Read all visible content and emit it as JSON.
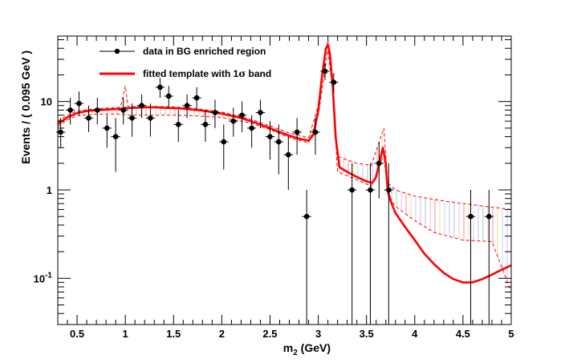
{
  "chart_data": {
    "type": "scatter",
    "xlabel": {
      "main": "m",
      "sub": "2",
      "unit": " (GeV)"
    },
    "ylabel": "Events / ( 0.095 GeV )",
    "log_y": true,
    "xlim": [
      0.3,
      5.0
    ],
    "ylim": [
      0.03,
      55
    ],
    "x_ticks": [
      {
        "v": 0.5,
        "label": "0.5"
      },
      {
        "v": 1.0,
        "label": "1"
      },
      {
        "v": 1.5,
        "label": "1.5"
      },
      {
        "v": 2.0,
        "label": "2"
      },
      {
        "v": 2.5,
        "label": "2.5"
      },
      {
        "v": 3.0,
        "label": "3"
      },
      {
        "v": 3.5,
        "label": "3.5"
      },
      {
        "v": 4.0,
        "label": "4"
      },
      {
        "v": 4.5,
        "label": "4.5"
      },
      {
        "v": 5.0,
        "label": "5"
      }
    ],
    "y_ticks": [
      {
        "v": 0.1,
        "base": "10",
        "exp": "-1"
      },
      {
        "v": 1,
        "base": "1",
        "exp": ""
      },
      {
        "v": 10,
        "base": "10",
        "exp": ""
      }
    ],
    "legend": {
      "position": "top-left",
      "entries": [
        {
          "label": "data in BG enriched region",
          "style": "marker",
          "color": "#000000"
        },
        {
          "label": "fitted template with 1",
          "symbol": "σ",
          "suffix": " band",
          "style": "line",
          "color": "#ff0000"
        }
      ]
    },
    "series": [
      {
        "name": "data in BG enriched region",
        "kind": "points",
        "color": "#000000",
        "x_err": 0.0475,
        "points": [
          {
            "x": 0.33,
            "y": 4.5,
            "lo": 3.0,
            "hi": 6.5
          },
          {
            "x": 0.43,
            "y": 8.0,
            "lo": 5.5,
            "hi": 11.0
          },
          {
            "x": 0.52,
            "y": 9.5,
            "lo": 7.0,
            "hi": 13.0
          },
          {
            "x": 0.62,
            "y": 6.5,
            "lo": 4.5,
            "hi": 9.0
          },
          {
            "x": 0.71,
            "y": 8.0,
            "lo": 5.5,
            "hi": 11.0
          },
          {
            "x": 0.81,
            "y": 5.0,
            "lo": 3.0,
            "hi": 7.0
          },
          {
            "x": 0.9,
            "y": 4.0,
            "lo": 1.6,
            "hi": 6.5
          },
          {
            "x": 0.98,
            "y": 8.0,
            "lo": 5.5,
            "hi": 11.0
          },
          {
            "x": 1.07,
            "y": 6.5,
            "lo": 4.0,
            "hi": 9.5
          },
          {
            "x": 1.17,
            "y": 9.0,
            "lo": 6.5,
            "hi": 12.0
          },
          {
            "x": 1.26,
            "y": 6.5,
            "lo": 4.0,
            "hi": 9.5
          },
          {
            "x": 1.36,
            "y": 14.5,
            "lo": 11.0,
            "hi": 18.5
          },
          {
            "x": 1.45,
            "y": 11.5,
            "lo": 8.5,
            "hi": 15.0
          },
          {
            "x": 1.55,
            "y": 5.5,
            "lo": 3.5,
            "hi": 8.0
          },
          {
            "x": 1.64,
            "y": 9.0,
            "lo": 6.5,
            "hi": 12.0
          },
          {
            "x": 1.74,
            "y": 11.0,
            "lo": 8.0,
            "hi": 14.5
          },
          {
            "x": 1.83,
            "y": 5.5,
            "lo": 3.5,
            "hi": 8.0
          },
          {
            "x": 1.93,
            "y": 7.5,
            "lo": 5.0,
            "hi": 10.5
          },
          {
            "x": 2.02,
            "y": 3.5,
            "lo": 1.7,
            "hi": 5.5
          },
          {
            "x": 2.12,
            "y": 6.0,
            "lo": 4.0,
            "hi": 8.5
          },
          {
            "x": 2.21,
            "y": 7.0,
            "lo": 4.5,
            "hi": 10.0
          },
          {
            "x": 2.31,
            "y": 5.0,
            "lo": 3.0,
            "hi": 7.0
          },
          {
            "x": 2.4,
            "y": 7.5,
            "lo": 5.0,
            "hi": 10.5
          },
          {
            "x": 2.5,
            "y": 4.0,
            "lo": 2.2,
            "hi": 6.0
          },
          {
            "x": 2.59,
            "y": 3.5,
            "lo": 1.5,
            "hi": 5.5
          },
          {
            "x": 2.69,
            "y": 2.5,
            "lo": 1.0,
            "hi": 4.0
          },
          {
            "x": 2.78,
            "y": 4.5,
            "lo": 2.5,
            "hi": 6.5
          },
          {
            "x": 2.88,
            "y": 0.5,
            "lo": 0.03,
            "hi": 1.0
          },
          {
            "x": 2.97,
            "y": 4.5,
            "lo": 2.5,
            "hi": 6.5
          },
          {
            "x": 3.07,
            "y": 22.0,
            "lo": 17.5,
            "hi": 27.0
          },
          {
            "x": 3.16,
            "y": 16.5,
            "lo": 12.5,
            "hi": 21.0
          },
          {
            "x": 3.35,
            "y": 1.0,
            "lo": 0.03,
            "hi": 2.0
          },
          {
            "x": 3.54,
            "y": 1.0,
            "lo": 0.03,
            "hi": 2.0
          },
          {
            "x": 3.63,
            "y": 2.0,
            "lo": 0.8,
            "hi": 3.5
          },
          {
            "x": 3.73,
            "y": 1.0,
            "lo": 0.03,
            "hi": 2.0
          },
          {
            "x": 4.58,
            "y": 0.5,
            "lo": 0.03,
            "hi": 1.0
          },
          {
            "x": 4.77,
            "y": 0.5,
            "lo": 0.03,
            "hi": 1.0
          }
        ]
      },
      {
        "name": "fitted template with 1σ band",
        "kind": "curve",
        "color": "#ff0000",
        "points": [
          [
            0.3,
            5.6
          ],
          [
            0.4,
            6.6
          ],
          [
            0.5,
            7.4
          ],
          [
            0.6,
            7.8
          ],
          [
            0.7,
            8.0
          ],
          [
            0.8,
            8.1
          ],
          [
            0.9,
            8.2
          ],
          [
            0.98,
            8.3
          ],
          [
            1.0,
            8.5
          ],
          [
            1.02,
            8.4
          ],
          [
            1.1,
            8.5
          ],
          [
            1.2,
            8.6
          ],
          [
            1.3,
            8.6
          ],
          [
            1.4,
            8.5
          ],
          [
            1.5,
            8.4
          ],
          [
            1.6,
            8.3
          ],
          [
            1.7,
            8.1
          ],
          [
            1.8,
            7.9
          ],
          [
            1.9,
            7.6
          ],
          [
            2.0,
            7.3
          ],
          [
            2.1,
            6.9
          ],
          [
            2.2,
            6.5
          ],
          [
            2.3,
            6.0
          ],
          [
            2.4,
            5.5
          ],
          [
            2.5,
            5.0
          ],
          [
            2.6,
            4.5
          ],
          [
            2.7,
            4.1
          ],
          [
            2.8,
            3.8
          ],
          [
            2.9,
            3.6
          ],
          [
            2.95,
            4.2
          ],
          [
            3.0,
            8.0
          ],
          [
            3.04,
            20.0
          ],
          [
            3.08,
            40.0
          ],
          [
            3.1,
            44.0
          ],
          [
            3.12,
            35.0
          ],
          [
            3.15,
            15.0
          ],
          [
            3.18,
            4.0
          ],
          [
            3.22,
            1.8
          ],
          [
            3.3,
            1.6
          ],
          [
            3.4,
            1.4
          ],
          [
            3.5,
            1.25
          ],
          [
            3.56,
            1.2
          ],
          [
            3.6,
            1.4
          ],
          [
            3.64,
            2.2
          ],
          [
            3.67,
            3.0
          ],
          [
            3.7,
            2.0
          ],
          [
            3.72,
            1.0
          ],
          [
            3.75,
            0.75
          ],
          [
            3.8,
            0.55
          ],
          [
            3.9,
            0.38
          ],
          [
            4.0,
            0.27
          ],
          [
            4.1,
            0.19
          ],
          [
            4.2,
            0.145
          ],
          [
            4.3,
            0.115
          ],
          [
            4.4,
            0.098
          ],
          [
            4.5,
            0.09
          ],
          [
            4.6,
            0.09
          ],
          [
            4.7,
            0.098
          ],
          [
            4.8,
            0.11
          ],
          [
            4.9,
            0.125
          ],
          [
            5.0,
            0.14
          ]
        ]
      },
      {
        "name": "1σ band upper",
        "kind": "band_edge",
        "color": "#ff0000",
        "points": [
          [
            0.3,
            6.0
          ],
          [
            0.4,
            7.0
          ],
          [
            0.5,
            7.8
          ],
          [
            0.7,
            8.3
          ],
          [
            0.95,
            8.6
          ],
          [
            1.0,
            15.0
          ],
          [
            1.03,
            8.7
          ],
          [
            1.3,
            8.8
          ],
          [
            1.5,
            8.7
          ],
          [
            1.7,
            8.4
          ],
          [
            2.0,
            7.6
          ],
          [
            2.3,
            6.3
          ],
          [
            2.5,
            5.3
          ],
          [
            2.7,
            4.4
          ],
          [
            2.9,
            3.9
          ],
          [
            3.0,
            9.0
          ],
          [
            3.1,
            50.0
          ],
          [
            3.15,
            17.0
          ],
          [
            3.2,
            2.4
          ],
          [
            3.4,
            2.0
          ],
          [
            3.55,
            1.9
          ],
          [
            3.68,
            5.0
          ],
          [
            3.72,
            1.2
          ],
          [
            3.8,
            1.0
          ],
          [
            4.0,
            0.85
          ],
          [
            4.3,
            0.75
          ],
          [
            4.6,
            0.68
          ],
          [
            5.0,
            0.6
          ]
        ]
      },
      {
        "name": "1σ band lower",
        "kind": "band_edge",
        "color": "#ff0000",
        "points": [
          [
            0.3,
            5.2
          ],
          [
            0.4,
            6.2
          ],
          [
            0.5,
            6.9
          ],
          [
            0.7,
            7.2
          ],
          [
            0.95,
            7.2
          ],
          [
            1.05,
            7.0
          ],
          [
            1.3,
            7.0
          ],
          [
            1.5,
            7.0
          ],
          [
            1.7,
            6.9
          ],
          [
            2.0,
            6.6
          ],
          [
            2.3,
            5.7
          ],
          [
            2.5,
            4.8
          ],
          [
            2.7,
            3.9
          ],
          [
            2.9,
            3.4
          ],
          [
            3.0,
            7.0
          ],
          [
            3.1,
            38.0
          ],
          [
            3.15,
            13.0
          ],
          [
            3.2,
            1.6
          ],
          [
            3.4,
            1.3
          ],
          [
            3.55,
            1.1
          ],
          [
            3.68,
            2.5
          ],
          [
            3.72,
            0.9
          ],
          [
            3.8,
            0.65
          ],
          [
            4.0,
            0.45
          ],
          [
            4.2,
            0.33
          ],
          [
            4.5,
            0.27
          ],
          [
            4.8,
            0.26
          ],
          [
            5.0,
            0.07
          ]
        ]
      }
    ]
  }
}
